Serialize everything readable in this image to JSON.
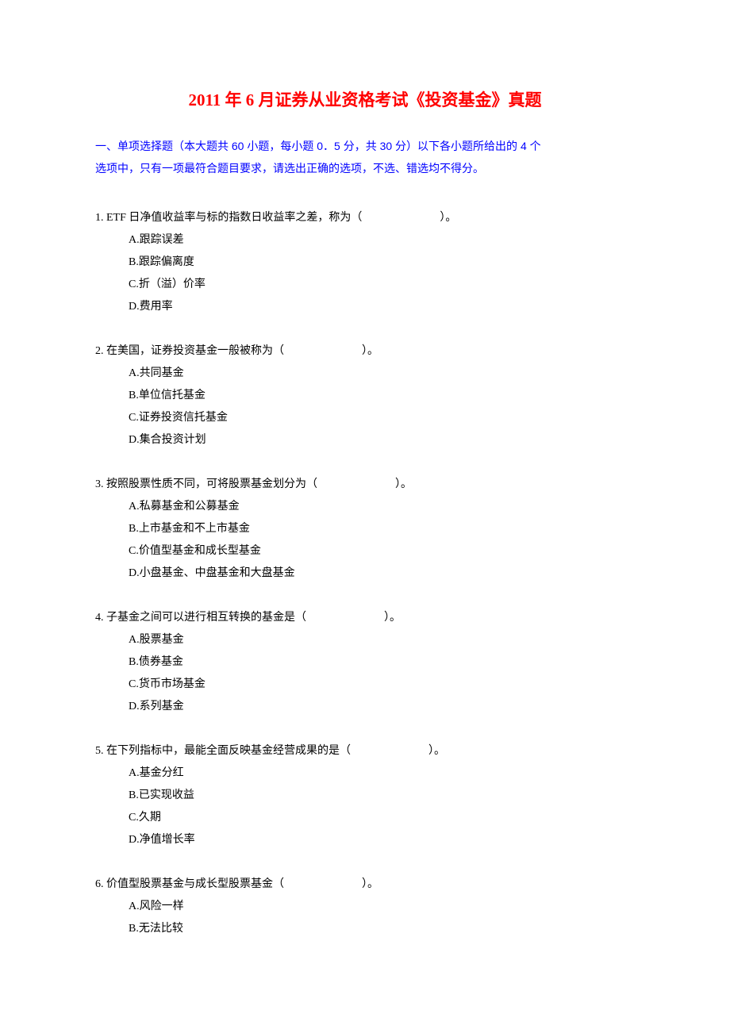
{
  "document": {
    "title": "2011 年 6 月证券从业资格考试《投资基金》真题",
    "instructions_line1": "一、单项选择题（本大题共 60 小题，每小题 0．5 分，共 30 分）以下各小题所给出的 4 个",
    "instructions_line2": "选项中，只有一项最符合题目要求，请选出正确的选项，不选、错选均不得分。",
    "title_color": "#ff0000",
    "instructions_color": "#0000ff",
    "text_color": "#000000",
    "background_color": "#ffffff",
    "title_fontsize": 21,
    "body_fontsize": 14
  },
  "q1": {
    "text": "1. ETF 日净值收益率与标的指数日收益率之差，称为（　　　　　　　）。",
    "a": "A.跟踪误差",
    "b": "B.跟踪偏离度",
    "c": "C.折（溢）价率",
    "d": "D.费用率"
  },
  "q2": {
    "text": "2.  在美国，证券投资基金一般被称为（　　　　　　　）。",
    "a": "A.共同基金",
    "b": "B.单位信托基金",
    "c": "C.证券投资信托基金",
    "d": "D.集合投资计划"
  },
  "q3": {
    "text": "3.  按照股票性质不同，可将股票基金划分为（　　　　　　　）。",
    "a": "A.私募基金和公募基金",
    "b": "B.上市基金和不上市基金",
    "c": "C.价值型基金和成长型基金",
    "d": "D.小盘基金、中盘基金和大盘基金"
  },
  "q4": {
    "text": "4.  子基金之间可以进行相互转换的基金是（　　　　　　　）。",
    "a": "A.股票基金",
    "b": "B.债券基金",
    "c": "C.货币市场基金",
    "d": "D.系列基金"
  },
  "q5": {
    "text": "5.  在下列指标中，最能全面反映基金经营成果的是（　　　　　　　）。",
    "a": "A.基金分红",
    "b": "B.已实现收益",
    "c": "C.久期",
    "d": "D.净值增长率"
  },
  "q6": {
    "text": "6.  价值型股票基金与成长型股票基金（　　　　　　　）。",
    "a": "A.风险一样",
    "b": "B.无法比较"
  }
}
